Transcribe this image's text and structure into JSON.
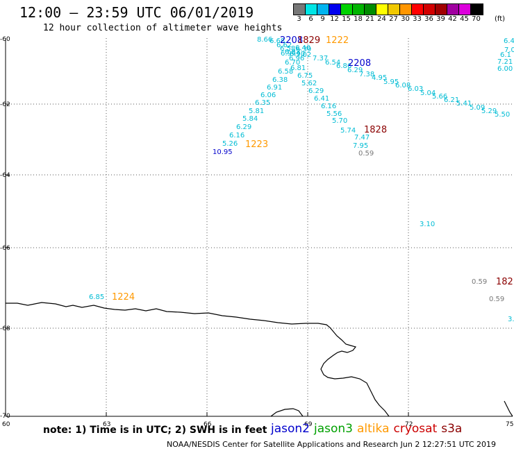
{
  "header": {
    "title": "12:00 – 23:59 UTC 06/01/2019",
    "subtitle": "12 hour collection of altimeter wave heights"
  },
  "legend": {
    "unit": "(ft)",
    "bins": [
      {
        "label": "3",
        "color": "#777777"
      },
      {
        "label": "6",
        "color": "#00e5e5"
      },
      {
        "label": "9",
        "color": "#00b4f0"
      },
      {
        "label": "12",
        "color": "#0000ee"
      },
      {
        "label": "15",
        "color": "#00d200"
      },
      {
        "label": "18",
        "color": "#00b400"
      },
      {
        "label": "21",
        "color": "#008c00"
      },
      {
        "label": "24",
        "color": "#ffff00"
      },
      {
        "label": "27",
        "color": "#f0c800"
      },
      {
        "label": "30",
        "color": "#ff9600"
      },
      {
        "label": "33",
        "color": "#ff0000"
      },
      {
        "label": "36",
        "color": "#d20000"
      },
      {
        "label": "39",
        "color": "#a00000"
      },
      {
        "label": "42",
        "color": "#a000a0"
      },
      {
        "label": "45",
        "color": "#dc00dc"
      },
      {
        "label": "70",
        "color": "#000000"
      }
    ]
  },
  "axes": {
    "lat_labels": [
      "-60",
      "-62",
      "-64",
      "-66",
      "-68",
      "-70"
    ],
    "lon_labels": [
      "60",
      "63",
      "66",
      "69",
      "72",
      "75"
    ]
  },
  "map_labels": {
    "obs": [
      {
        "t": "8.66",
        "c": "#00bcd4"
      },
      {
        "t": "6.68",
        "c": "#00bcd4"
      },
      {
        "t": "6.62",
        "c": "#00bcd4"
      },
      {
        "t": "6.58",
        "c": "#00bcd4"
      },
      {
        "t": "6.40",
        "c": "#00bcd4"
      },
      {
        "t": "6.82",
        "c": "#00bcd4"
      },
      {
        "t": "6.94",
        "c": "#00bcd4"
      },
      {
        "t": "6.90",
        "c": "#00bcd4"
      },
      {
        "t": "7.02",
        "c": "#00bcd4"
      },
      {
        "t": "6.96",
        "c": "#00bcd4"
      },
      {
        "t": "6.70",
        "c": "#00bcd4"
      },
      {
        "t": "7.37",
        "c": "#00bcd4"
      },
      {
        "t": "6.54",
        "c": "#00bcd4"
      },
      {
        "t": "6.39",
        "c": "#00bcd4"
      },
      {
        "t": "6.86",
        "c": "#00bcd4"
      },
      {
        "t": "6.29",
        "c": "#00bcd4"
      },
      {
        "t": "6.81",
        "c": "#00bcd4"
      },
      {
        "t": "6.58",
        "c": "#00bcd4"
      },
      {
        "t": "7.38",
        "c": "#00bcd4"
      },
      {
        "t": "6.75",
        "c": "#00bcd4"
      },
      {
        "t": "4.95",
        "c": "#00bcd4"
      },
      {
        "t": "6.38",
        "c": "#00bcd4"
      },
      {
        "t": "5.95",
        "c": "#00bcd4"
      },
      {
        "t": "5.62",
        "c": "#00bcd4"
      },
      {
        "t": "6.08",
        "c": "#00bcd4"
      },
      {
        "t": "6.91",
        "c": "#00bcd4"
      },
      {
        "t": "6.29",
        "c": "#00bcd4"
      },
      {
        "t": "6.03",
        "c": "#00bcd4"
      },
      {
        "t": "5.04",
        "c": "#00bcd4"
      },
      {
        "t": "6.06",
        "c": "#00bcd4"
      },
      {
        "t": "6.41",
        "c": "#00bcd4"
      },
      {
        "t": "5.66",
        "c": "#00bcd4"
      },
      {
        "t": "6.21",
        "c": "#00bcd4"
      },
      {
        "t": "6.35",
        "c": "#00bcd4"
      },
      {
        "t": "6.16",
        "c": "#00bcd4"
      },
      {
        "t": "5.41",
        "c": "#00bcd4"
      },
      {
        "t": "5.81",
        "c": "#00bcd4"
      },
      {
        "t": "5.56",
        "c": "#00bcd4"
      },
      {
        "t": "5.09",
        "c": "#00bcd4"
      },
      {
        "t": "5.29",
        "c": "#00bcd4"
      },
      {
        "t": "5.84",
        "c": "#00bcd4"
      },
      {
        "t": "5.70",
        "c": "#00bcd4"
      },
      {
        "t": "5.50",
        "c": "#00bcd4"
      },
      {
        "t": "6.29",
        "c": "#00bcd4"
      },
      {
        "t": "5.74",
        "c": "#00bcd4"
      },
      {
        "t": "6.16",
        "c": "#00bcd4"
      },
      {
        "t": "7.47",
        "c": "#00bcd4"
      },
      {
        "t": "5.26",
        "c": "#00bcd4"
      },
      {
        "t": "7.95",
        "c": "#00bcd4"
      },
      {
        "t": "10.95",
        "c": "#0000cc"
      },
      {
        "t": "0.59",
        "c": "#777777"
      },
      {
        "t": "3.10",
        "c": "#00bcd4"
      },
      {
        "t": "0.59",
        "c": "#777777"
      },
      {
        "t": "0.59",
        "c": "#777777"
      },
      {
        "t": "6.85",
        "c": "#00bcd4"
      },
      {
        "t": "3.",
        "c": "#00bcd4"
      },
      {
        "t": "6.4",
        "c": "#00bcd4"
      },
      {
        "t": "7.0",
        "c": "#00bcd4"
      },
      {
        "t": "6.1",
        "c": "#00bcd4"
      },
      {
        "t": "7.21",
        "c": "#00bcd4"
      },
      {
        "t": "6.00",
        "c": "#00bcd4"
      }
    ],
    "times": [
      {
        "t": "2208",
        "c": "#0000cc"
      },
      {
        "t": "1829",
        "c": "#8b0000"
      },
      {
        "t": "1222",
        "c": "#ff9900"
      },
      {
        "t": "2208",
        "c": "#0000cc"
      },
      {
        "t": "1828",
        "c": "#8b0000"
      },
      {
        "t": "1223",
        "c": "#ff9900"
      },
      {
        "t": "1224",
        "c": "#ff9900"
      },
      {
        "t": "182",
        "c": "#8b0000"
      }
    ]
  },
  "note": "note: 1) Time is in UTC; 2) SWH is in feet",
  "satellites": [
    {
      "name": "jason2",
      "color": "#0000cc"
    },
    {
      "name": "jason3",
      "color": "#00a000"
    },
    {
      "name": "altika",
      "color": "#ff9900"
    },
    {
      "name": "cryosat",
      "color": "#cc0000"
    },
    {
      "name": "s3a",
      "color": "#8b0000"
    }
  ],
  "footer": "NOAA/NESDIS Center for Satellite Applications and Research   Jun  2 12:27:51 UTC 2019"
}
